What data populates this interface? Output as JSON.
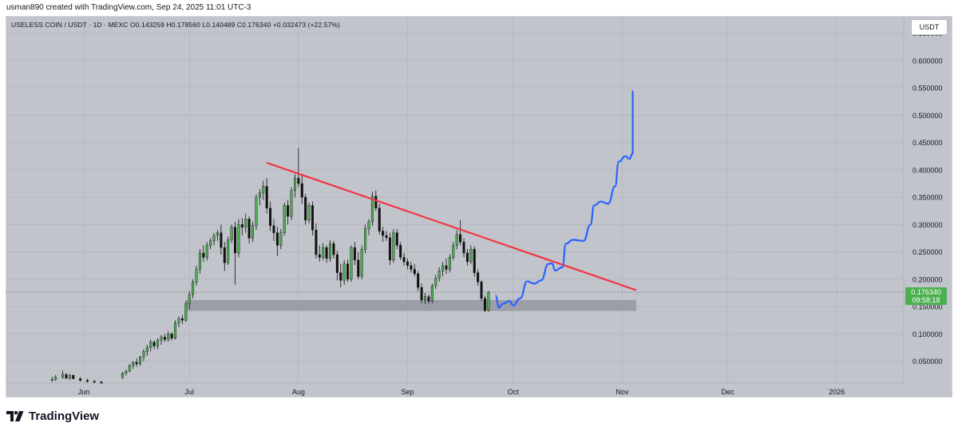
{
  "header": {
    "attribution": "usman890 created with TradingView.com, Sep 24, 2025 11:01 UTC-3"
  },
  "symbol_line": "USELESS COIN / USDT · 1D · MEXC   O0.143259  H0.178560  L0.140489  C0.176340  +0.032473 (+22.57%)",
  "currency_button": "USDT",
  "footer": {
    "brand": "TradingView",
    "logo_icon": "tradingview-logo-icon"
  },
  "colors": {
    "background": "#c2c4cb",
    "up_candle": "#4caf50",
    "down_candle": "#111111",
    "trendline": "#f23645",
    "projection": "#2962ff",
    "support_zone": "#9598a1",
    "price_label": "#4caf50"
  },
  "chart_data": {
    "type": "candlestick",
    "title": "",
    "pair": "USELESS COIN / USDT",
    "interval": "1D",
    "exchange": "MEXC",
    "ohlc_last": {
      "open": 0.143259,
      "high": 0.17856,
      "low": 0.140489,
      "close": 0.17634,
      "change": "+0.032473 (+22.57%)"
    },
    "ylim": [
      0.01,
      0.68
    ],
    "y_ticks": [
      "0.650000",
      "0.600000",
      "0.550000",
      "0.500000",
      "0.450000",
      "0.400000",
      "0.350000",
      "0.300000",
      "0.250000",
      "0.200000",
      "0.150000",
      "0.100000",
      "0.050000"
    ],
    "y_tick_values": [
      0.65,
      0.6,
      0.55,
      0.5,
      0.45,
      0.4,
      0.35,
      0.3,
      0.25,
      0.2,
      0.15,
      0.1,
      0.05
    ],
    "x_ticks": [
      {
        "label": "Jun",
        "date": "2025-06-01"
      },
      {
        "label": "Jul",
        "date": "2025-07-01"
      },
      {
        "label": "Aug",
        "date": "2025-08-01"
      },
      {
        "label": "Sep",
        "date": "2025-09-01"
      },
      {
        "label": "Oct",
        "date": "2025-10-01"
      },
      {
        "label": "Nov",
        "date": "2025-11-01"
      },
      {
        "label": "Dec",
        "date": "2025-12-01"
      },
      {
        "label": "2026",
        "date": "2026-01-01"
      }
    ],
    "xlim": [
      "2025-05-10",
      "2026-01-20"
    ],
    "grid": true,
    "current_price": {
      "value": 0.17634,
      "label": "0.176340",
      "countdown": "09:58:18"
    },
    "candles": [
      {
        "d": "2025-05-23",
        "o": 0.015,
        "h": 0.022,
        "l": 0.012,
        "c": 0.017
      },
      {
        "d": "2025-05-24",
        "o": 0.017,
        "h": 0.025,
        "l": 0.014,
        "c": 0.021
      },
      {
        "d": "2025-05-26",
        "o": 0.021,
        "h": 0.033,
        "l": 0.018,
        "c": 0.026
      },
      {
        "d": "2025-05-27",
        "o": 0.026,
        "h": 0.028,
        "l": 0.017,
        "c": 0.019
      },
      {
        "d": "2025-05-28",
        "o": 0.019,
        "h": 0.027,
        "l": 0.016,
        "c": 0.024
      },
      {
        "d": "2025-05-29",
        "o": 0.024,
        "h": 0.026,
        "l": 0.017,
        "c": 0.018
      },
      {
        "d": "2025-05-31",
        "o": 0.018,
        "h": 0.021,
        "l": 0.013,
        "c": 0.015
      },
      {
        "d": "2025-06-02",
        "o": 0.015,
        "h": 0.018,
        "l": 0.011,
        "c": 0.013
      },
      {
        "d": "2025-06-04",
        "o": 0.013,
        "h": 0.016,
        "l": 0.01,
        "c": 0.012
      },
      {
        "d": "2025-06-06",
        "o": 0.012,
        "h": 0.014,
        "l": 0.009,
        "c": 0.01
      },
      {
        "d": "2025-06-12",
        "o": 0.02,
        "h": 0.03,
        "l": 0.018,
        "c": 0.028
      },
      {
        "d": "2025-06-13",
        "o": 0.028,
        "h": 0.034,
        "l": 0.024,
        "c": 0.032
      },
      {
        "d": "2025-06-14",
        "o": 0.032,
        "h": 0.045,
        "l": 0.03,
        "c": 0.042
      },
      {
        "d": "2025-06-15",
        "o": 0.042,
        "h": 0.05,
        "l": 0.036,
        "c": 0.048
      },
      {
        "d": "2025-06-16",
        "o": 0.048,
        "h": 0.055,
        "l": 0.04,
        "c": 0.045
      },
      {
        "d": "2025-06-17",
        "o": 0.045,
        "h": 0.06,
        "l": 0.042,
        "c": 0.058
      },
      {
        "d": "2025-06-18",
        "o": 0.058,
        "h": 0.072,
        "l": 0.05,
        "c": 0.068
      },
      {
        "d": "2025-06-19",
        "o": 0.068,
        "h": 0.08,
        "l": 0.06,
        "c": 0.075
      },
      {
        "d": "2025-06-20",
        "o": 0.075,
        "h": 0.09,
        "l": 0.068,
        "c": 0.085
      },
      {
        "d": "2025-06-21",
        "o": 0.085,
        "h": 0.088,
        "l": 0.072,
        "c": 0.078
      },
      {
        "d": "2025-06-22",
        "o": 0.078,
        "h": 0.092,
        "l": 0.072,
        "c": 0.088
      },
      {
        "d": "2025-06-23",
        "o": 0.088,
        "h": 0.098,
        "l": 0.08,
        "c": 0.094
      },
      {
        "d": "2025-06-24",
        "o": 0.094,
        "h": 0.1,
        "l": 0.085,
        "c": 0.09
      },
      {
        "d": "2025-06-25",
        "o": 0.09,
        "h": 0.105,
        "l": 0.086,
        "c": 0.1
      },
      {
        "d": "2025-06-26",
        "o": 0.1,
        "h": 0.103,
        "l": 0.088,
        "c": 0.092
      },
      {
        "d": "2025-06-27",
        "o": 0.092,
        "h": 0.125,
        "l": 0.09,
        "c": 0.12
      },
      {
        "d": "2025-06-28",
        "o": 0.12,
        "h": 0.132,
        "l": 0.112,
        "c": 0.128
      },
      {
        "d": "2025-06-29",
        "o": 0.128,
        "h": 0.135,
        "l": 0.118,
        "c": 0.125
      },
      {
        "d": "2025-06-30",
        "o": 0.125,
        "h": 0.16,
        "l": 0.122,
        "c": 0.155
      },
      {
        "d": "2025-07-01",
        "o": 0.155,
        "h": 0.178,
        "l": 0.145,
        "c": 0.172
      },
      {
        "d": "2025-07-02",
        "o": 0.172,
        "h": 0.2,
        "l": 0.165,
        "c": 0.195
      },
      {
        "d": "2025-07-03",
        "o": 0.195,
        "h": 0.225,
        "l": 0.188,
        "c": 0.218
      },
      {
        "d": "2025-07-04",
        "o": 0.218,
        "h": 0.255,
        "l": 0.21,
        "c": 0.248
      },
      {
        "d": "2025-07-05",
        "o": 0.248,
        "h": 0.262,
        "l": 0.232,
        "c": 0.24
      },
      {
        "d": "2025-07-06",
        "o": 0.24,
        "h": 0.268,
        "l": 0.234,
        "c": 0.262
      },
      {
        "d": "2025-07-07",
        "o": 0.262,
        "h": 0.275,
        "l": 0.255,
        "c": 0.27
      },
      {
        "d": "2025-07-08",
        "o": 0.27,
        "h": 0.285,
        "l": 0.262,
        "c": 0.28
      },
      {
        "d": "2025-07-09",
        "o": 0.28,
        "h": 0.29,
        "l": 0.27,
        "c": 0.285
      },
      {
        "d": "2025-07-10",
        "o": 0.285,
        "h": 0.3,
        "l": 0.245,
        "c": 0.258
      },
      {
        "d": "2025-07-11",
        "o": 0.258,
        "h": 0.268,
        "l": 0.215,
        "c": 0.23
      },
      {
        "d": "2025-07-12",
        "o": 0.23,
        "h": 0.278,
        "l": 0.226,
        "c": 0.272
      },
      {
        "d": "2025-07-13",
        "o": 0.272,
        "h": 0.3,
        "l": 0.266,
        "c": 0.295
      },
      {
        "d": "2025-07-14",
        "o": 0.295,
        "h": 0.305,
        "l": 0.19,
        "c": 0.248
      },
      {
        "d": "2025-07-15",
        "o": 0.248,
        "h": 0.31,
        "l": 0.24,
        "c": 0.3
      },
      {
        "d": "2025-07-16",
        "o": 0.3,
        "h": 0.312,
        "l": 0.28,
        "c": 0.295
      },
      {
        "d": "2025-07-17",
        "o": 0.295,
        "h": 0.32,
        "l": 0.285,
        "c": 0.31
      },
      {
        "d": "2025-07-18",
        "o": 0.31,
        "h": 0.315,
        "l": 0.265,
        "c": 0.275
      },
      {
        "d": "2025-07-19",
        "o": 0.275,
        "h": 0.305,
        "l": 0.268,
        "c": 0.298
      },
      {
        "d": "2025-07-20",
        "o": 0.298,
        "h": 0.355,
        "l": 0.29,
        "c": 0.35
      },
      {
        "d": "2025-07-21",
        "o": 0.35,
        "h": 0.365,
        "l": 0.335,
        "c": 0.358
      },
      {
        "d": "2025-07-22",
        "o": 0.358,
        "h": 0.38,
        "l": 0.345,
        "c": 0.37
      },
      {
        "d": "2025-07-23",
        "o": 0.37,
        "h": 0.385,
        "l": 0.32,
        "c": 0.33
      },
      {
        "d": "2025-07-24",
        "o": 0.33,
        "h": 0.342,
        "l": 0.288,
        "c": 0.298
      },
      {
        "d": "2025-07-25",
        "o": 0.298,
        "h": 0.31,
        "l": 0.27,
        "c": 0.285
      },
      {
        "d": "2025-07-26",
        "o": 0.285,
        "h": 0.296,
        "l": 0.242,
        "c": 0.262
      },
      {
        "d": "2025-07-27",
        "o": 0.262,
        "h": 0.292,
        "l": 0.255,
        "c": 0.285
      },
      {
        "d": "2025-07-28",
        "o": 0.285,
        "h": 0.34,
        "l": 0.28,
        "c": 0.335
      },
      {
        "d": "2025-07-29",
        "o": 0.335,
        "h": 0.345,
        "l": 0.3,
        "c": 0.315
      },
      {
        "d": "2025-07-30",
        "o": 0.315,
        "h": 0.368,
        "l": 0.308,
        "c": 0.362
      },
      {
        "d": "2025-07-31",
        "o": 0.362,
        "h": 0.392,
        "l": 0.35,
        "c": 0.385
      },
      {
        "d": "2025-08-01",
        "o": 0.385,
        "h": 0.44,
        "l": 0.368,
        "c": 0.375
      },
      {
        "d": "2025-08-02",
        "o": 0.375,
        "h": 0.392,
        "l": 0.338,
        "c": 0.35
      },
      {
        "d": "2025-08-03",
        "o": 0.35,
        "h": 0.356,
        "l": 0.3,
        "c": 0.308
      },
      {
        "d": "2025-08-04",
        "o": 0.308,
        "h": 0.34,
        "l": 0.302,
        "c": 0.335
      },
      {
        "d": "2025-08-05",
        "o": 0.335,
        "h": 0.342,
        "l": 0.28,
        "c": 0.29
      },
      {
        "d": "2025-08-06",
        "o": 0.29,
        "h": 0.302,
        "l": 0.238,
        "c": 0.245
      },
      {
        "d": "2025-08-07",
        "o": 0.245,
        "h": 0.262,
        "l": 0.232,
        "c": 0.24
      },
      {
        "d": "2025-08-08",
        "o": 0.24,
        "h": 0.266,
        "l": 0.235,
        "c": 0.258
      },
      {
        "d": "2025-08-09",
        "o": 0.258,
        "h": 0.262,
        "l": 0.23,
        "c": 0.238
      },
      {
        "d": "2025-08-10",
        "o": 0.238,
        "h": 0.272,
        "l": 0.232,
        "c": 0.265
      },
      {
        "d": "2025-08-11",
        "o": 0.265,
        "h": 0.27,
        "l": 0.238,
        "c": 0.245
      },
      {
        "d": "2025-08-12",
        "o": 0.245,
        "h": 0.252,
        "l": 0.198,
        "c": 0.212
      },
      {
        "d": "2025-08-13",
        "o": 0.212,
        "h": 0.228,
        "l": 0.185,
        "c": 0.198
      },
      {
        "d": "2025-08-14",
        "o": 0.198,
        "h": 0.235,
        "l": 0.19,
        "c": 0.228
      },
      {
        "d": "2025-08-15",
        "o": 0.228,
        "h": 0.236,
        "l": 0.195,
        "c": 0.2
      },
      {
        "d": "2025-08-16",
        "o": 0.2,
        "h": 0.262,
        "l": 0.195,
        "c": 0.258
      },
      {
        "d": "2025-08-17",
        "o": 0.258,
        "h": 0.268,
        "l": 0.226,
        "c": 0.235
      },
      {
        "d": "2025-08-18",
        "o": 0.235,
        "h": 0.25,
        "l": 0.2,
        "c": 0.205
      },
      {
        "d": "2025-08-19",
        "o": 0.205,
        "h": 0.262,
        "l": 0.2,
        "c": 0.255
      },
      {
        "d": "2025-08-20",
        "o": 0.255,
        "h": 0.3,
        "l": 0.248,
        "c": 0.292
      },
      {
        "d": "2025-08-21",
        "o": 0.292,
        "h": 0.31,
        "l": 0.28,
        "c": 0.305
      },
      {
        "d": "2025-08-22",
        "o": 0.305,
        "h": 0.36,
        "l": 0.298,
        "c": 0.352
      },
      {
        "d": "2025-08-23",
        "o": 0.352,
        "h": 0.362,
        "l": 0.325,
        "c": 0.33
      },
      {
        "d": "2025-08-24",
        "o": 0.33,
        "h": 0.338,
        "l": 0.282,
        "c": 0.288
      },
      {
        "d": "2025-08-25",
        "o": 0.288,
        "h": 0.296,
        "l": 0.268,
        "c": 0.28
      },
      {
        "d": "2025-08-26",
        "o": 0.28,
        "h": 0.288,
        "l": 0.27,
        "c": 0.276
      },
      {
        "d": "2025-08-27",
        "o": 0.276,
        "h": 0.285,
        "l": 0.226,
        "c": 0.235
      },
      {
        "d": "2025-08-28",
        "o": 0.235,
        "h": 0.292,
        "l": 0.23,
        "c": 0.285
      },
      {
        "d": "2025-08-29",
        "o": 0.285,
        "h": 0.292,
        "l": 0.255,
        "c": 0.262
      },
      {
        "d": "2025-08-30",
        "o": 0.262,
        "h": 0.268,
        "l": 0.235,
        "c": 0.24
      },
      {
        "d": "2025-08-31",
        "o": 0.24,
        "h": 0.248,
        "l": 0.225,
        "c": 0.232
      },
      {
        "d": "2025-09-01",
        "o": 0.232,
        "h": 0.238,
        "l": 0.218,
        "c": 0.225
      },
      {
        "d": "2025-09-02",
        "o": 0.225,
        "h": 0.232,
        "l": 0.212,
        "c": 0.218
      },
      {
        "d": "2025-09-03",
        "o": 0.218,
        "h": 0.228,
        "l": 0.205,
        "c": 0.21
      },
      {
        "d": "2025-09-04",
        "o": 0.21,
        "h": 0.215,
        "l": 0.178,
        "c": 0.185
      },
      {
        "d": "2025-09-05",
        "o": 0.185,
        "h": 0.192,
        "l": 0.156,
        "c": 0.162
      },
      {
        "d": "2025-09-06",
        "o": 0.162,
        "h": 0.175,
        "l": 0.155,
        "c": 0.168
      },
      {
        "d": "2025-09-07",
        "o": 0.168,
        "h": 0.172,
        "l": 0.156,
        "c": 0.16
      },
      {
        "d": "2025-09-08",
        "o": 0.16,
        "h": 0.192,
        "l": 0.156,
        "c": 0.188
      },
      {
        "d": "2025-09-09",
        "o": 0.188,
        "h": 0.208,
        "l": 0.182,
        "c": 0.202
      },
      {
        "d": "2025-09-10",
        "o": 0.202,
        "h": 0.222,
        "l": 0.195,
        "c": 0.215
      },
      {
        "d": "2025-09-11",
        "o": 0.215,
        "h": 0.232,
        "l": 0.205,
        "c": 0.225
      },
      {
        "d": "2025-09-12",
        "o": 0.225,
        "h": 0.238,
        "l": 0.21,
        "c": 0.218
      },
      {
        "d": "2025-09-13",
        "o": 0.218,
        "h": 0.246,
        "l": 0.212,
        "c": 0.24
      },
      {
        "d": "2025-09-14",
        "o": 0.24,
        "h": 0.268,
        "l": 0.235,
        "c": 0.262
      },
      {
        "d": "2025-09-15",
        "o": 0.262,
        "h": 0.29,
        "l": 0.255,
        "c": 0.282
      },
      {
        "d": "2025-09-16",
        "o": 0.282,
        "h": 0.308,
        "l": 0.262,
        "c": 0.268
      },
      {
        "d": "2025-09-17",
        "o": 0.268,
        "h": 0.275,
        "l": 0.24,
        "c": 0.248
      },
      {
        "d": "2025-09-18",
        "o": 0.248,
        "h": 0.255,
        "l": 0.225,
        "c": 0.232
      },
      {
        "d": "2025-09-19",
        "o": 0.232,
        "h": 0.262,
        "l": 0.228,
        "c": 0.255
      },
      {
        "d": "2025-09-20",
        "o": 0.255,
        "h": 0.26,
        "l": 0.205,
        "c": 0.212
      },
      {
        "d": "2025-09-21",
        "o": 0.212,
        "h": 0.218,
        "l": 0.188,
        "c": 0.195
      },
      {
        "d": "2025-09-22",
        "o": 0.195,
        "h": 0.198,
        "l": 0.16,
        "c": 0.165
      },
      {
        "d": "2025-09-23",
        "o": 0.165,
        "h": 0.17,
        "l": 0.14,
        "c": 0.143
      },
      {
        "d": "2025-09-24",
        "o": 0.143259,
        "h": 0.17856,
        "l": 0.140489,
        "c": 0.17634
      }
    ],
    "annotations": {
      "trendline": {
        "start": {
          "date": "2025-07-23",
          "price": 0.413
        },
        "end": {
          "date": "2025-11-05",
          "price": 0.18
        }
      },
      "support_zone": {
        "start": "2025-06-30",
        "end": "2025-11-05",
        "top": 0.162,
        "bottom": 0.142
      },
      "projection_path": [
        {
          "date": "2025-09-26",
          "price": 0.17
        },
        {
          "date": "2025-09-27",
          "price": 0.148
        },
        {
          "date": "2025-09-28",
          "price": 0.155
        },
        {
          "date": "2025-09-30",
          "price": 0.16
        },
        {
          "date": "2025-10-01",
          "price": 0.152
        },
        {
          "date": "2025-10-03",
          "price": 0.165
        },
        {
          "date": "2025-10-05",
          "price": 0.196
        },
        {
          "date": "2025-10-07",
          "price": 0.192
        },
        {
          "date": "2025-10-09",
          "price": 0.198
        },
        {
          "date": "2025-10-11",
          "price": 0.228
        },
        {
          "date": "2025-10-12",
          "price": 0.229
        },
        {
          "date": "2025-10-13",
          "price": 0.216
        },
        {
          "date": "2025-10-15",
          "price": 0.222
        },
        {
          "date": "2025-10-16",
          "price": 0.265
        },
        {
          "date": "2025-10-18",
          "price": 0.272
        },
        {
          "date": "2025-10-21",
          "price": 0.27
        },
        {
          "date": "2025-10-23",
          "price": 0.3
        },
        {
          "date": "2025-10-24",
          "price": 0.335
        },
        {
          "date": "2025-10-26",
          "price": 0.342
        },
        {
          "date": "2025-10-28",
          "price": 0.338
        },
        {
          "date": "2025-10-30",
          "price": 0.37
        },
        {
          "date": "2025-10-31",
          "price": 0.415
        },
        {
          "date": "2025-11-02",
          "price": 0.425
        },
        {
          "date": "2025-11-03",
          "price": 0.42
        },
        {
          "date": "2025-11-04",
          "price": 0.43
        },
        {
          "date": "2025-11-04",
          "price": 0.545
        }
      ]
    }
  }
}
